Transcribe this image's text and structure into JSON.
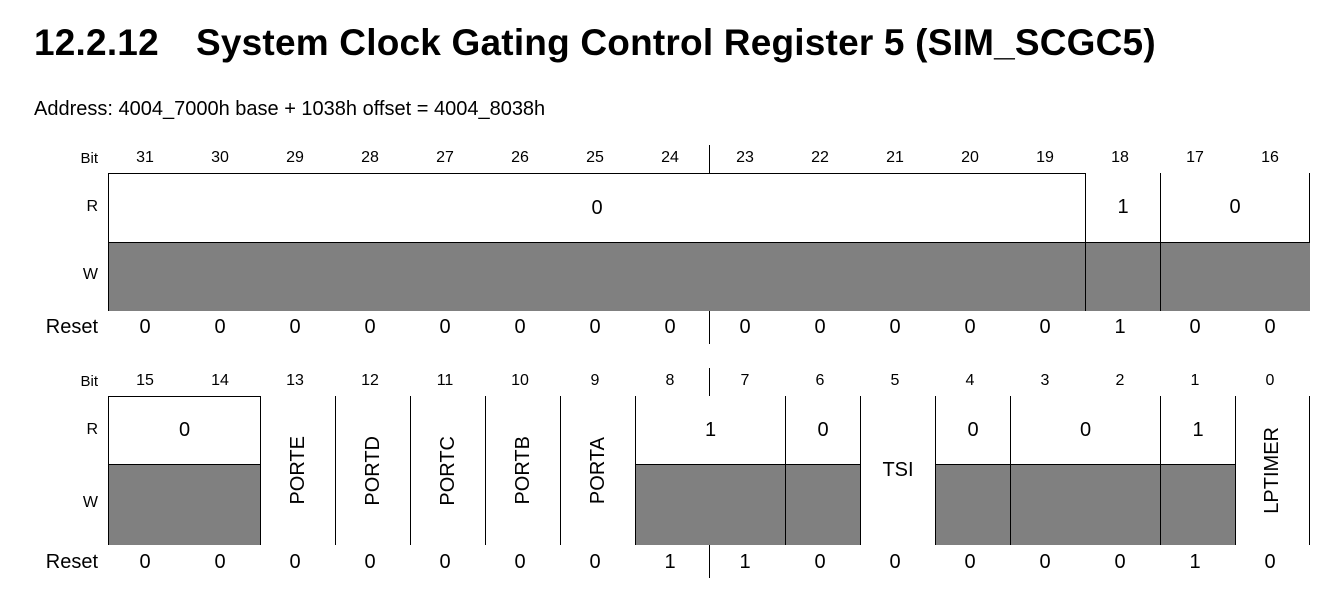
{
  "section_number": "12.2.12",
  "title": "System Clock Gating Control Register 5 (SIM_SCGC5)",
  "address": "Address: 4004_7000h base + 1038h offset = 4004_8038h",
  "labels": {
    "bit": "Bit",
    "r": "R",
    "w": "W",
    "reset": "Reset"
  },
  "upper": {
    "bits": [
      "31",
      "30",
      "29",
      "28",
      "27",
      "26",
      "25",
      "24",
      "23",
      "22",
      "21",
      "20",
      "19",
      "18",
      "17",
      "16"
    ],
    "fields": [
      {
        "r": "0",
        "w": ""
      },
      {
        "r": "1",
        "w": ""
      },
      {
        "r": "0",
        "w": ""
      }
    ],
    "reset": [
      "0",
      "0",
      "0",
      "0",
      "0",
      "0",
      "0",
      "0",
      "0",
      "0",
      "0",
      "0",
      "0",
      "1",
      "0",
      "0"
    ]
  },
  "lower": {
    "bits": [
      "15",
      "14",
      "13",
      "12",
      "11",
      "10",
      "9",
      "8",
      "7",
      "6",
      "5",
      "4",
      "3",
      "2",
      "1",
      "0"
    ],
    "fields": [
      {
        "r": "0"
      },
      {
        "name": "PORTE"
      },
      {
        "name": "PORTD"
      },
      {
        "name": "PORTC"
      },
      {
        "name": "PORTB"
      },
      {
        "name": "PORTA"
      },
      {
        "r": "1"
      },
      {
        "r": "0"
      },
      {
        "name": "TSI"
      },
      {
        "r": "0"
      },
      {
        "r": "0"
      },
      {
        "r": "1"
      },
      {
        "name": "LPTIMER"
      }
    ],
    "reset": [
      "0",
      "0",
      "0",
      "0",
      "0",
      "0",
      "0",
      "1",
      "1",
      "0",
      "0",
      "0",
      "0",
      "0",
      "1",
      "0"
    ]
  }
}
